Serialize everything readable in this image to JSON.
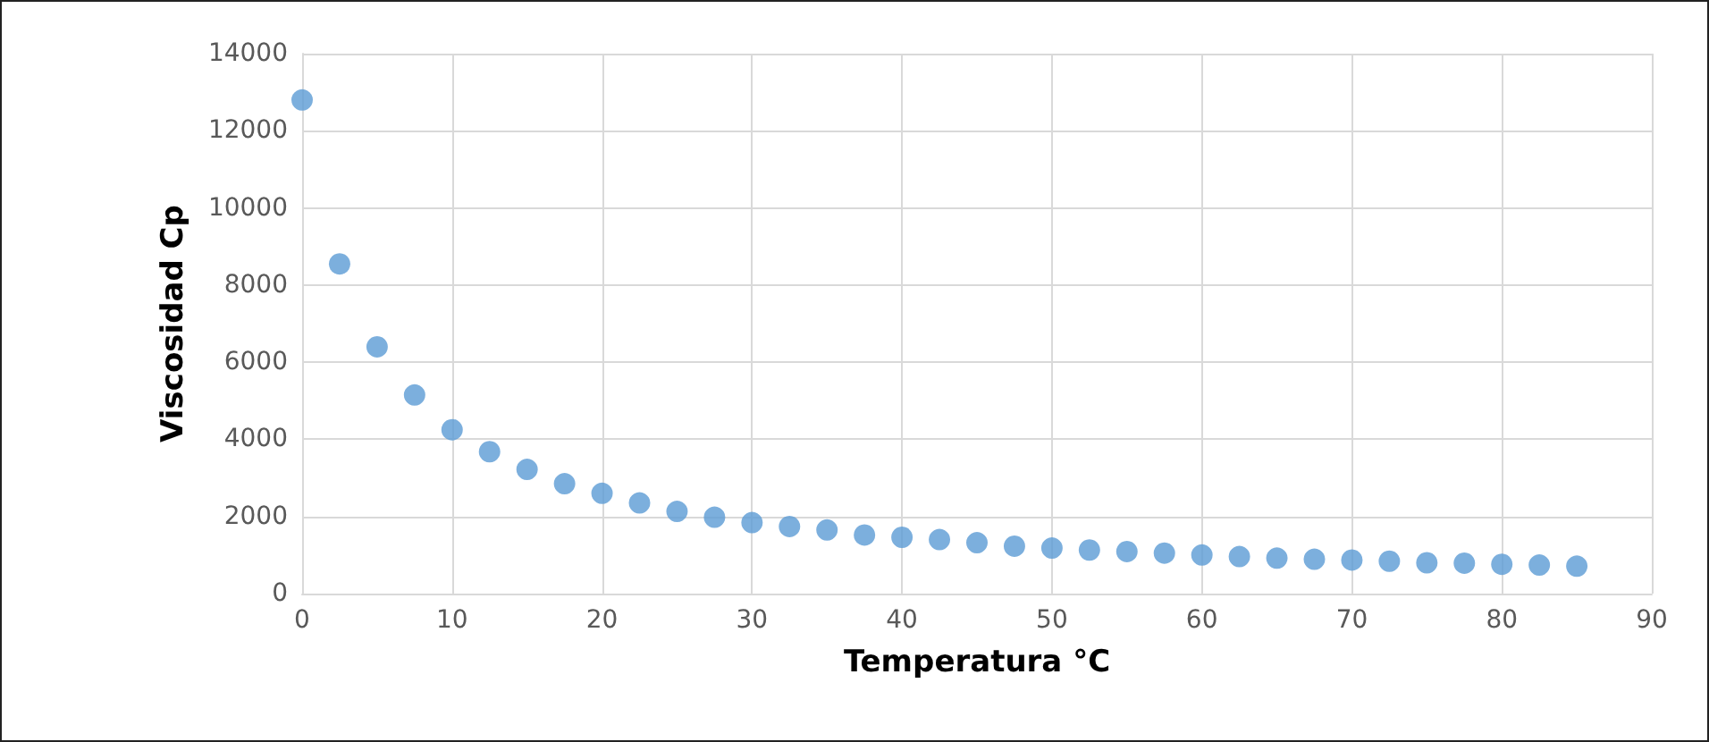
{
  "chart_data": {
    "type": "scatter",
    "xlabel": "Temperatura °C",
    "ylabel": "Viscosidad Cp",
    "x": [
      0,
      2.5,
      5,
      7.5,
      10,
      12.5,
      15,
      17.5,
      20,
      22.5,
      25,
      27.5,
      30,
      32.5,
      35,
      37.5,
      40,
      42.5,
      45,
      47.5,
      50,
      52.5,
      55,
      57.5,
      60,
      62.5,
      65,
      67.5,
      70,
      72.5,
      75,
      77.5,
      80,
      82.5,
      85
    ],
    "values": [
      12800,
      8550,
      6400,
      5150,
      4250,
      3680,
      3220,
      2850,
      2600,
      2350,
      2130,
      1980,
      1840,
      1740,
      1650,
      1520,
      1460,
      1400,
      1320,
      1230,
      1180,
      1130,
      1090,
      1050,
      1000,
      960,
      920,
      890,
      870,
      840,
      800,
      790,
      760,
      740,
      710
    ],
    "color": "#5b9bd5",
    "marker": "circle",
    "xlim": [
      0,
      90
    ],
    "xticks": [
      0,
      10,
      20,
      30,
      40,
      50,
      60,
      70,
      80,
      90
    ],
    "ylim": [
      0,
      14000
    ],
    "yticks": [
      0,
      2000,
      4000,
      6000,
      8000,
      10000,
      12000,
      14000
    ],
    "grid": true
  }
}
